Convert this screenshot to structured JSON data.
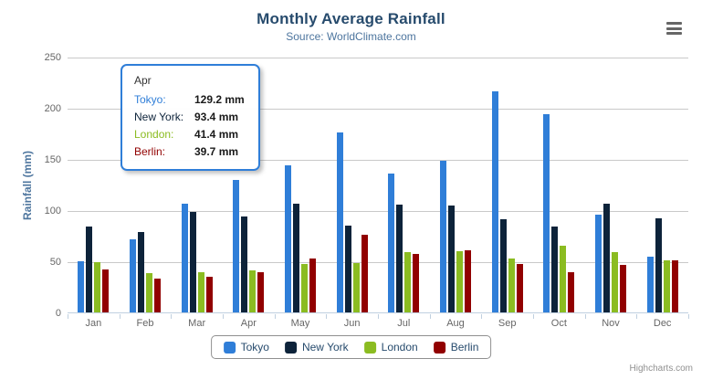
{
  "title": "Monthly Average Rainfall",
  "subtitle": "Source: WorldClimate.com",
  "y_axis": {
    "title": "Rainfall (mm)",
    "ticks": [
      0,
      50,
      100,
      150,
      200,
      250
    ],
    "max": 250
  },
  "chart_data": {
    "type": "bar",
    "title": "Monthly Average Rainfall",
    "subtitle": "Source: WorldClimate.com",
    "xlabel": "",
    "ylabel": "Rainfall (mm)",
    "ylim": [
      0,
      250
    ],
    "grid": true,
    "legend_position": "bottom",
    "categories": [
      "Jan",
      "Feb",
      "Mar",
      "Apr",
      "May",
      "Jun",
      "Jul",
      "Aug",
      "Sep",
      "Oct",
      "Nov",
      "Dec"
    ],
    "series": [
      {
        "name": "Tokyo",
        "color": "#2f7ed8",
        "values": [
          49.9,
          71.5,
          106.4,
          129.2,
          144.0,
          176.0,
          135.6,
          148.5,
          216.4,
          194.1,
          95.6,
          54.4
        ]
      },
      {
        "name": "New York",
        "color": "#0d233a",
        "values": [
          83.6,
          78.8,
          98.5,
          93.4,
          106.0,
          84.5,
          105.0,
          104.3,
          91.2,
          83.5,
          106.6,
          92.3
        ]
      },
      {
        "name": "London",
        "color": "#8bbc21",
        "values": [
          48.9,
          38.8,
          39.3,
          41.4,
          47.0,
          48.3,
          59.0,
          59.6,
          52.4,
          65.2,
          59.3,
          51.2
        ]
      },
      {
        "name": "Berlin",
        "color": "#910000",
        "values": [
          42.4,
          33.2,
          34.5,
          39.7,
          52.6,
          75.5,
          57.4,
          60.4,
          47.6,
          39.1,
          46.8,
          51.1
        ]
      }
    ]
  },
  "tooltip": {
    "header": "Apr",
    "rows": [
      {
        "label": "Tokyo:",
        "value": "129.2 mm",
        "color": "#2f7ed8"
      },
      {
        "label": "New York:",
        "value": "93.4 mm",
        "color": "#0d233a"
      },
      {
        "label": "London:",
        "value": "41.4 mm",
        "color": "#8bbc21"
      },
      {
        "label": "Berlin:",
        "value": "39.7 mm",
        "color": "#910000"
      }
    ]
  },
  "legend": {
    "items": [
      {
        "label": "Tokyo",
        "color": "#2f7ed8"
      },
      {
        "label": "New York",
        "color": "#0d233a"
      },
      {
        "label": "London",
        "color": "#8bbc21"
      },
      {
        "label": "Berlin",
        "color": "#910000"
      }
    ]
  },
  "credits": "Highcharts.com",
  "colors": {
    "title": "#274b6d",
    "subtitle": "#4d759e",
    "gridline": "#c9c9c9",
    "axis_line": "#c0d0e0",
    "axis_label": "#666666"
  }
}
